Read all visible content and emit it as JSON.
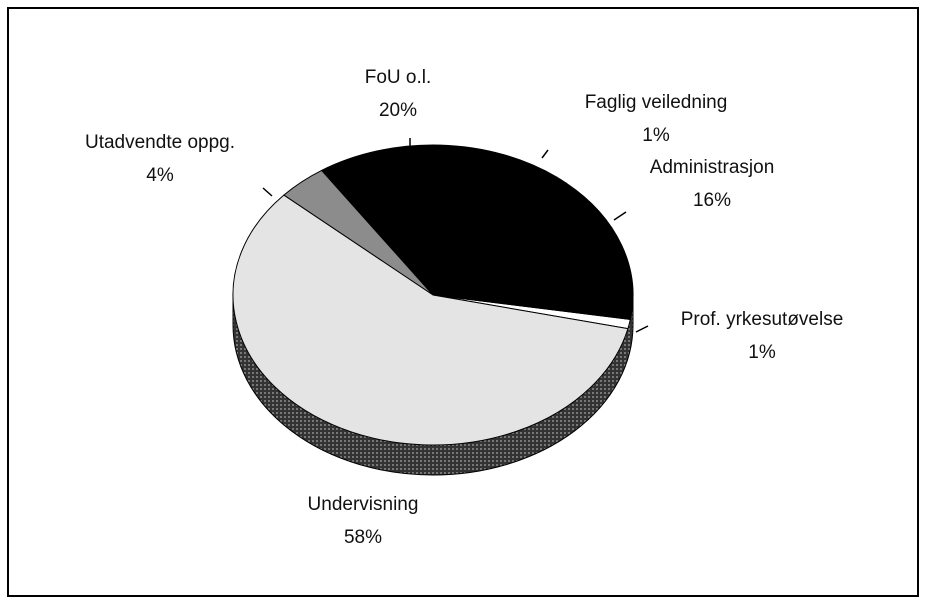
{
  "chart_data": {
    "type": "pie",
    "categories": [
      "Prof. yrkesutøvelse",
      "Administrasjon",
      "Faglig veiledning",
      "FoU o.l.",
      "Utadvendte oppg.",
      "Undervisning"
    ],
    "values": [
      1,
      16,
      1,
      20,
      4,
      58
    ],
    "value_labels": [
      "1%",
      "16%",
      "1%",
      "20%",
      "4%",
      "58%"
    ],
    "colors": [
      "#ffffff",
      "#000000",
      "#000000",
      "#000000",
      "#8c8c8c",
      "#e4e4e4"
    ]
  }
}
